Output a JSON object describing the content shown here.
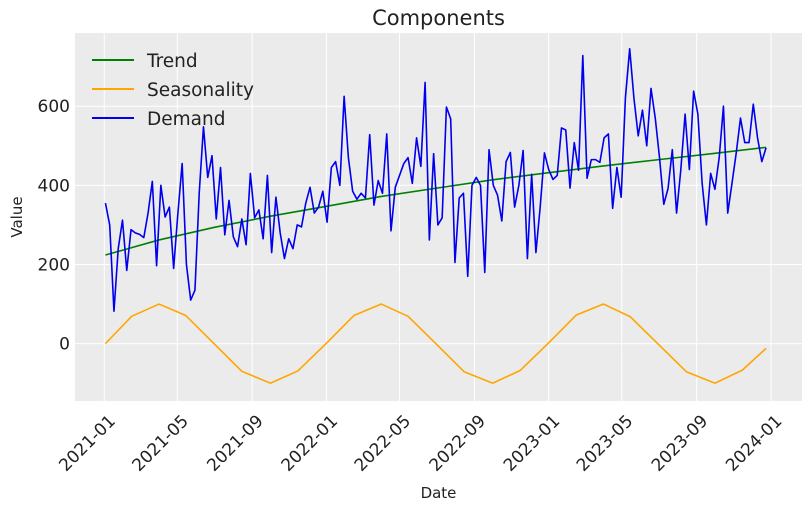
{
  "chart_data": {
    "type": "line",
    "title": "Components",
    "xlabel": "Date",
    "ylabel": "Value",
    "x_ticks": [
      "2021-01",
      "2021-05",
      "2021-09",
      "2022-01",
      "2022-05",
      "2022-09",
      "2023-01",
      "2023-05",
      "2023-09",
      "2024-01"
    ],
    "y_ticks": [
      0,
      200,
      400,
      600
    ],
    "xlim": [
      "2020-11-14",
      "2024-02-21"
    ],
    "ylim": [
      -145,
      785
    ],
    "grid": true,
    "legend_position": "top-left",
    "background": "#ebebeb",
    "series": [
      {
        "name": "Trend",
        "color": "#008000",
        "x": [
          "2021-01-03",
          "2021-04-01",
          "2021-07-01",
          "2021-10-01",
          "2022-01-01",
          "2022-04-01",
          "2022-07-01",
          "2022-10-01",
          "2023-01-01",
          "2023-04-01",
          "2023-07-01",
          "2023-10-01",
          "2023-12-24"
        ],
        "y": [
          224,
          262,
          294,
          322,
          347,
          372,
          393,
          414,
          432,
          449,
          465,
          481,
          496
        ]
      },
      {
        "name": "Seasonality",
        "color": "#ffa500",
        "x": [
          "2021-01-03",
          "2021-02-15",
          "2021-04-01",
          "2021-05-15",
          "2021-07-01",
          "2021-08-15",
          "2021-10-01",
          "2021-11-15",
          "2022-01-01",
          "2022-02-15",
          "2022-04-01",
          "2022-05-15",
          "2022-07-01",
          "2022-08-15",
          "2022-10-01",
          "2022-11-15",
          "2023-01-01",
          "2023-02-15",
          "2023-04-01",
          "2023-05-15",
          "2023-07-01",
          "2023-08-15",
          "2023-10-01",
          "2023-11-15",
          "2023-12-24"
        ],
        "y": [
          0,
          69,
          100,
          71,
          -1,
          -70,
          -100,
          -69,
          1,
          71,
          100,
          69,
          -2,
          -71,
          -100,
          -68,
          2,
          72,
          100,
          68,
          -3,
          -71,
          -100,
          -67,
          -12
        ]
      },
      {
        "name": "Demand",
        "color": "#0000ee",
        "x": [
          "2021-01-03",
          "2021-01-10",
          "2021-01-17",
          "2021-01-24",
          "2021-01-31",
          "2021-02-07",
          "2021-02-14",
          "2021-02-21",
          "2021-02-28",
          "2021-03-07",
          "2021-03-14",
          "2021-03-21",
          "2021-03-28",
          "2021-04-04",
          "2021-04-11",
          "2021-04-18",
          "2021-04-25",
          "2021-05-02",
          "2021-05-09",
          "2021-05-16",
          "2021-05-23",
          "2021-05-30",
          "2021-06-06",
          "2021-06-13",
          "2021-06-20",
          "2021-06-27",
          "2021-07-04",
          "2021-07-11",
          "2021-07-18",
          "2021-07-25",
          "2021-08-01",
          "2021-08-08",
          "2021-08-15",
          "2021-08-22",
          "2021-08-29",
          "2021-09-05",
          "2021-09-12",
          "2021-09-19",
          "2021-09-26",
          "2021-10-03",
          "2021-10-10",
          "2021-10-17",
          "2021-10-24",
          "2021-10-31",
          "2021-11-07",
          "2021-11-14",
          "2021-11-21",
          "2021-11-28",
          "2021-12-05",
          "2021-12-12",
          "2021-12-19",
          "2021-12-26",
          "2022-01-02",
          "2022-01-09",
          "2022-01-16",
          "2022-01-23",
          "2022-01-30",
          "2022-02-06",
          "2022-02-13",
          "2022-02-20",
          "2022-02-27",
          "2022-03-06",
          "2022-03-13",
          "2022-03-20",
          "2022-03-27",
          "2022-04-03",
          "2022-04-10",
          "2022-04-17",
          "2022-04-24",
          "2022-05-01",
          "2022-05-08",
          "2022-05-15",
          "2022-05-22",
          "2022-05-29",
          "2022-06-05",
          "2022-06-12",
          "2022-06-19",
          "2022-06-26",
          "2022-07-03",
          "2022-07-10",
          "2022-07-17",
          "2022-07-24",
          "2022-07-31",
          "2022-08-07",
          "2022-08-14",
          "2022-08-21",
          "2022-08-28",
          "2022-09-04",
          "2022-09-11",
          "2022-09-18",
          "2022-09-25",
          "2022-10-02",
          "2022-10-09",
          "2022-10-16",
          "2022-10-23",
          "2022-10-30",
          "2022-11-06",
          "2022-11-13",
          "2022-11-20",
          "2022-11-27",
          "2022-12-04",
          "2022-12-11",
          "2022-12-18",
          "2022-12-25",
          "2023-01-01",
          "2023-01-08",
          "2023-01-15",
          "2023-01-22",
          "2023-01-29",
          "2023-02-05",
          "2023-02-12",
          "2023-02-19",
          "2023-02-26",
          "2023-03-05",
          "2023-03-12",
          "2023-03-19",
          "2023-03-26",
          "2023-04-02",
          "2023-04-09",
          "2023-04-16",
          "2023-04-23",
          "2023-04-30",
          "2023-05-07",
          "2023-05-14",
          "2023-05-21",
          "2023-05-28",
          "2023-06-04",
          "2023-06-11",
          "2023-06-18",
          "2023-06-25",
          "2023-07-02",
          "2023-07-09",
          "2023-07-16",
          "2023-07-23",
          "2023-07-30",
          "2023-08-06",
          "2023-08-13",
          "2023-08-20",
          "2023-08-27",
          "2023-09-03",
          "2023-09-10",
          "2023-09-17",
          "2023-09-24",
          "2023-10-01",
          "2023-10-08",
          "2023-10-15",
          "2023-10-22",
          "2023-10-29",
          "2023-11-05",
          "2023-11-12",
          "2023-11-19",
          "2023-11-26",
          "2023-12-03",
          "2023-12-10",
          "2023-12-17",
          "2023-12-24"
        ],
        "y": [
          355,
          300,
          82,
          240,
          312,
          185,
          288,
          280,
          276,
          268,
          330,
          410,
          197,
          400,
          320,
          345,
          190,
          330,
          455,
          200,
          110,
          135,
          380,
          548,
          420,
          475,
          315,
          445,
          275,
          362,
          270,
          245,
          315,
          250,
          430,
          318,
          338,
          265,
          425,
          230,
          370,
          280,
          215,
          265,
          240,
          300,
          295,
          355,
          395,
          330,
          345,
          385,
          307,
          445,
          460,
          400,
          625,
          470,
          385,
          365,
          380,
          368,
          528,
          350,
          412,
          380,
          530,
          285,
          395,
          425,
          455,
          470,
          405,
          520,
          448,
          660,
          262,
          480,
          300,
          318,
          598,
          568,
          205,
          368,
          380,
          170,
          400,
          420,
          400,
          180,
          490,
          400,
          375,
          310,
          460,
          483,
          345,
          400,
          488,
          215,
          428,
          230,
          345,
          482,
          440,
          415,
          425,
          545,
          540,
          393,
          508,
          438,
          728,
          418,
          465,
          465,
          458,
          520,
          530,
          342,
          445,
          370,
          622,
          745,
          620,
          525,
          590,
          500,
          645,
          570,
          470,
          352,
          392,
          490,
          330,
          440,
          580,
          440,
          638,
          580,
          405,
          300,
          430,
          390,
          470,
          600,
          330,
          405,
          482,
          570,
          508,
          508,
          605,
          520,
          460,
          495
        ]
      }
    ]
  }
}
